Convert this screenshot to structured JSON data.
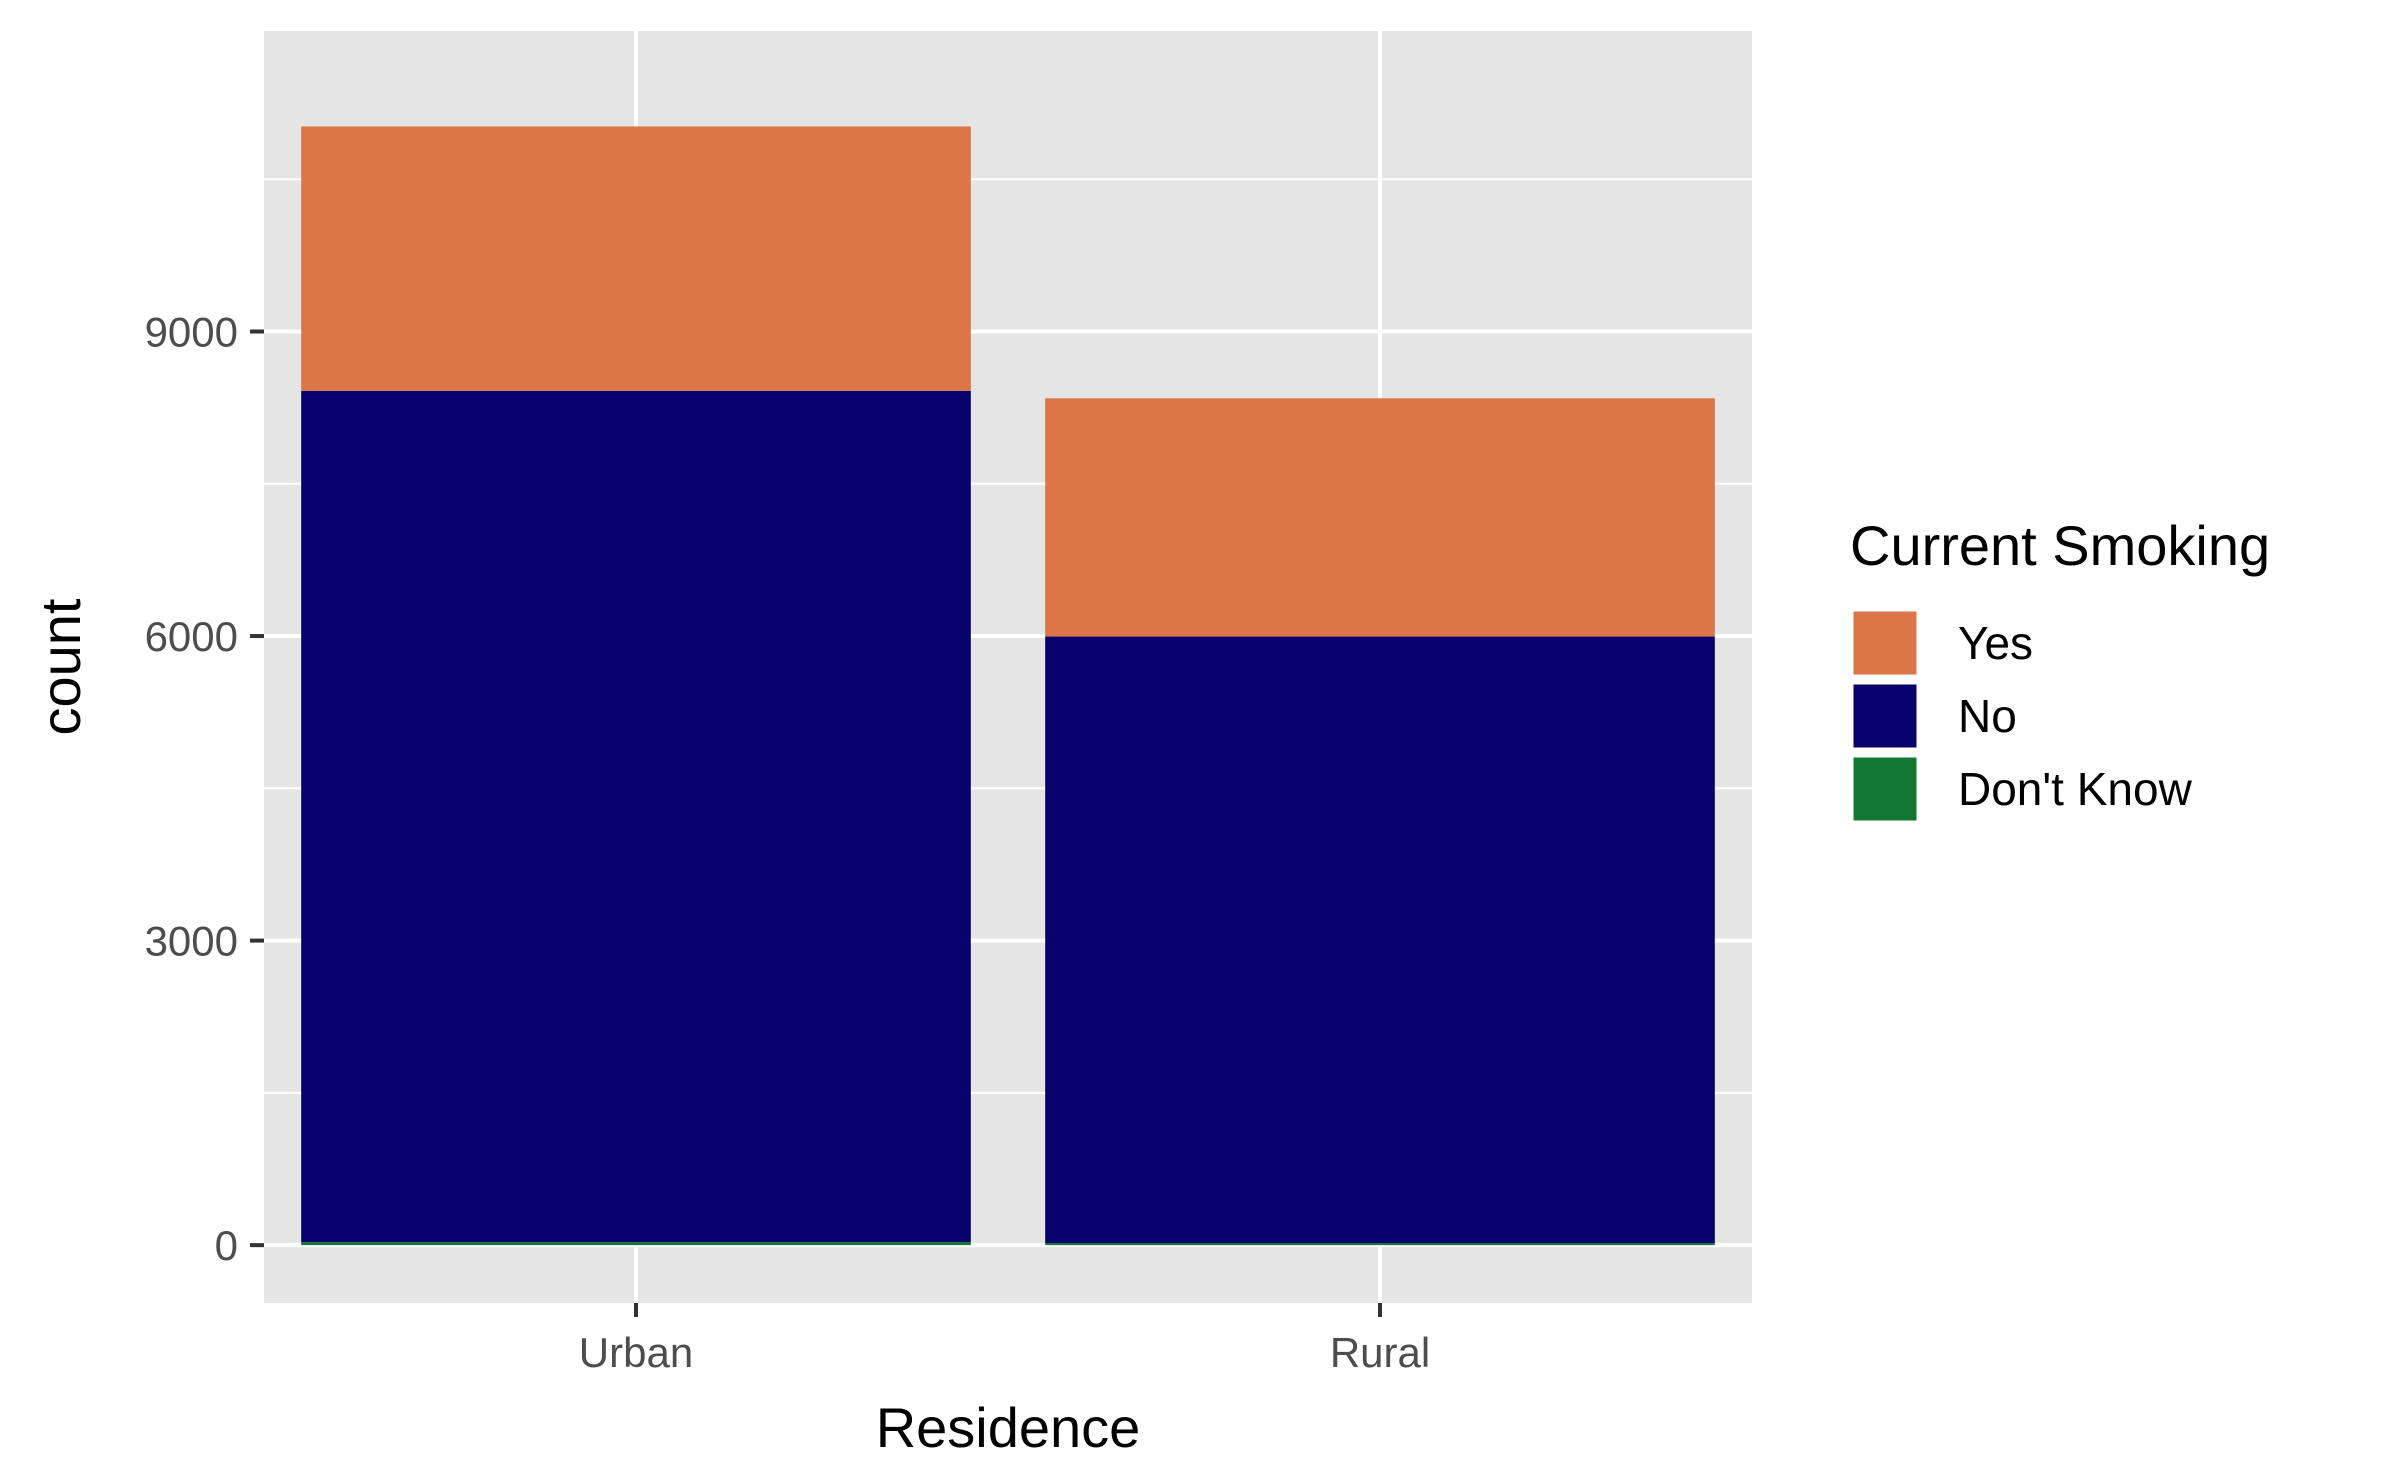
{
  "chart_data": {
    "type": "bar",
    "stacked": true,
    "title": "",
    "xlabel": "Residence",
    "ylabel": "count",
    "categories": [
      "Urban",
      "Rural"
    ],
    "series": [
      {
        "name": "Don't Know",
        "color": "#117733",
        "values": [
          30,
          20
        ]
      },
      {
        "name": "No",
        "color": "#08006b",
        "values": [
          8385,
          5975
        ]
      },
      {
        "name": "Yes",
        "color": "#dc7649",
        "values": [
          2605,
          2347
        ]
      }
    ],
    "stack_order_bottom_to_top": [
      "Don't Know",
      "No",
      "Yes"
    ],
    "yticks": [
      0,
      3000,
      6000,
      9000
    ],
    "ylim": [
      -570,
      11960
    ],
    "grid": true,
    "legend": {
      "title": "Current Smoking",
      "position": "right",
      "entries": [
        "Yes",
        "No",
        "Don't Know"
      ]
    },
    "panel_background": "#e5e5e5",
    "grid_color": "#ffffff"
  }
}
